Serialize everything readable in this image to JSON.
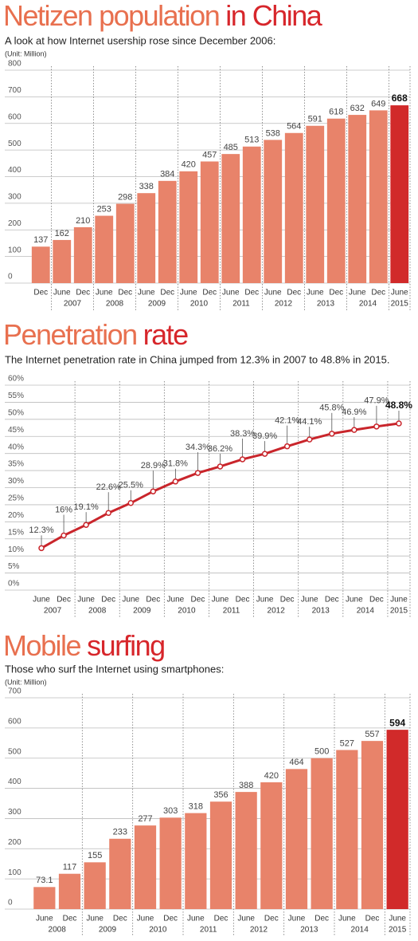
{
  "chart_data": [
    {
      "type": "bar",
      "title_parts": [
        "Netizen population",
        "in China"
      ],
      "subtitle": "A look at how Internet usership rose since December 2006:",
      "unit": "(Unit: Million)",
      "categories": [
        "Dec",
        "June",
        "Dec",
        "June",
        "Dec",
        "June",
        "Dec",
        "June",
        "Dec",
        "June",
        "Dec",
        "June",
        "Dec",
        "June",
        "Dec",
        "June",
        "Dec",
        "June"
      ],
      "category_years": [
        null,
        "2007",
        "2007",
        "2008",
        "2008",
        "2009",
        "2009",
        "2010",
        "2010",
        "2011",
        "2011",
        "2012",
        "2012",
        "2013",
        "2013",
        "2014",
        "2014",
        "2015"
      ],
      "values": [
        137,
        162,
        210,
        253,
        298,
        338,
        384,
        420,
        457,
        485,
        513,
        538,
        564,
        591,
        618,
        632,
        649,
        668
      ],
      "color": "#e8836a",
      "highlight_color": "#d12a2a",
      "highlight_last": true,
      "ylim": [
        0,
        800
      ],
      "yticks": [
        0,
        100,
        200,
        300,
        400,
        500,
        600,
        700,
        800
      ],
      "grid": true
    },
    {
      "type": "line",
      "title_parts": [
        "Penetration",
        "rate"
      ],
      "subtitle": "The Internet penetration rate in China jumped from 12.3% in 2007 to 48.8% in 2015.",
      "categories": [
        "June",
        "Dec",
        "June",
        "Dec",
        "June",
        "Dec",
        "June",
        "Dec",
        "June",
        "Dec",
        "June",
        "Dec",
        "June",
        "Dec",
        "June",
        "Dec",
        "June"
      ],
      "category_years": [
        "2007",
        "2007",
        "2008",
        "2008",
        "2009",
        "2009",
        "2010",
        "2010",
        "2011",
        "2011",
        "2012",
        "2012",
        "2013",
        "2013",
        "2014",
        "2014",
        "2015"
      ],
      "values": [
        12.3,
        16,
        19.1,
        22.6,
        25.5,
        28.9,
        31.8,
        34.3,
        36.2,
        38.3,
        39.9,
        42.1,
        44.1,
        45.8,
        46.9,
        47.9,
        48.8
      ],
      "value_labels": [
        "12.3%",
        "16%",
        "19.1%",
        "22.6%",
        "25.5%",
        "28.9%",
        "31.8%",
        "34.3%",
        "36.2%",
        "38.3%",
        "39.9%",
        "42.1%",
        "44.1%",
        "45.8%",
        "46.9%",
        "47.9%",
        "48.8%"
      ],
      "color": "#c9252b",
      "highlight_last": true,
      "ylim": [
        0,
        60
      ],
      "yticks": [
        {
          "value": 0,
          "label": "0%"
        },
        {
          "value": 5,
          "label": "5%"
        },
        {
          "value": 10,
          "label": "10%"
        },
        {
          "value": 15,
          "label": "15%"
        },
        {
          "value": 20,
          "label": "20%"
        },
        {
          "value": 25,
          "label": "25%"
        },
        {
          "value": 30,
          "label": "30%"
        },
        {
          "value": 35,
          "label": "35%"
        },
        {
          "value": 40,
          "label": "40%"
        },
        {
          "value": 45,
          "label": "45%"
        },
        {
          "value": 50,
          "label": "50%"
        },
        {
          "value": 55,
          "label": "55%"
        },
        {
          "value": 60,
          "label": "60%"
        }
      ],
      "grid": true
    },
    {
      "type": "bar",
      "title_parts": [
        "Mobile",
        "surfing"
      ],
      "subtitle": "Those who surf the Internet using smartphones:",
      "unit": "(Unit: Million)",
      "categories": [
        "June",
        "Dec",
        "June",
        "Dec",
        "June",
        "Dec",
        "June",
        "Dec",
        "June",
        "Dec",
        "June",
        "Dec",
        "June",
        "Dec",
        "June"
      ],
      "category_years": [
        "2008",
        "2008",
        "2009",
        "2009",
        "2010",
        "2010",
        "2011",
        "2011",
        "2012",
        "2012",
        "2013",
        "2013",
        "2014",
        "2014",
        "2015"
      ],
      "values": [
        73.1,
        117,
        155,
        233,
        277,
        303,
        318,
        356,
        388,
        420,
        464,
        500,
        527,
        557,
        594
      ],
      "color": "#e8836a",
      "highlight_color": "#d12a2a",
      "highlight_last": true,
      "ylim": [
        0,
        700
      ],
      "yticks": [
        0,
        100,
        200,
        300,
        400,
        500,
        600,
        700
      ],
      "grid": true
    }
  ]
}
